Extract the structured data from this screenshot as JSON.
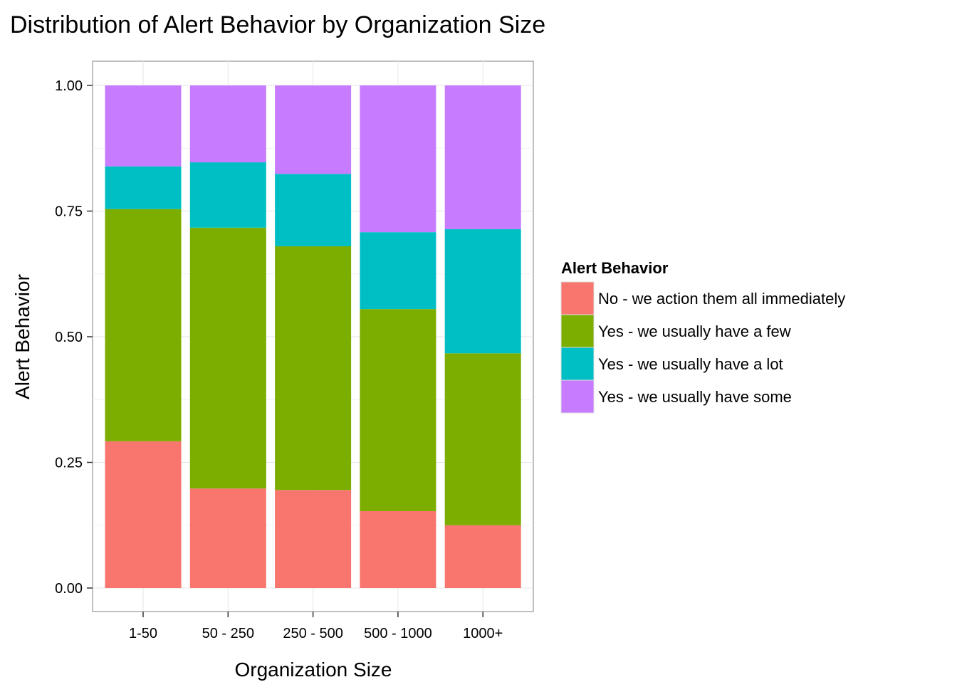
{
  "chart_data": {
    "type": "bar",
    "stacked": "fill",
    "title": "Distribution of Alert Behavior by Organization Size",
    "xlabel": "Organization Size",
    "ylabel": "Alert Behavior",
    "ylim": [
      0,
      1
    ],
    "yticks": [
      "0.00",
      "0.25",
      "0.50",
      "0.75",
      "1.00"
    ],
    "grid": true,
    "legend_position": "right",
    "legend_title": "Alert Behavior",
    "categories": [
      "1-50",
      "50 - 250",
      "250 - 500",
      "500 - 1000",
      "1000+"
    ],
    "series": [
      {
        "name": "No - we action them all immediately",
        "color": "#F8766D",
        "values": [
          0.292,
          0.198,
          0.195,
          0.153,
          0.125
        ]
      },
      {
        "name": "Yes - we usually have a few",
        "color": "#7CAE00",
        "values": [
          0.462,
          0.519,
          0.485,
          0.402,
          0.342
        ]
      },
      {
        "name": "Yes - we usually have a lot",
        "color": "#00BFC4",
        "values": [
          0.085,
          0.13,
          0.144,
          0.153,
          0.247
        ]
      },
      {
        "name": "Yes - we usually have some",
        "color": "#C77CFF",
        "values": [
          0.161,
          0.153,
          0.176,
          0.292,
          0.286
        ]
      }
    ]
  }
}
